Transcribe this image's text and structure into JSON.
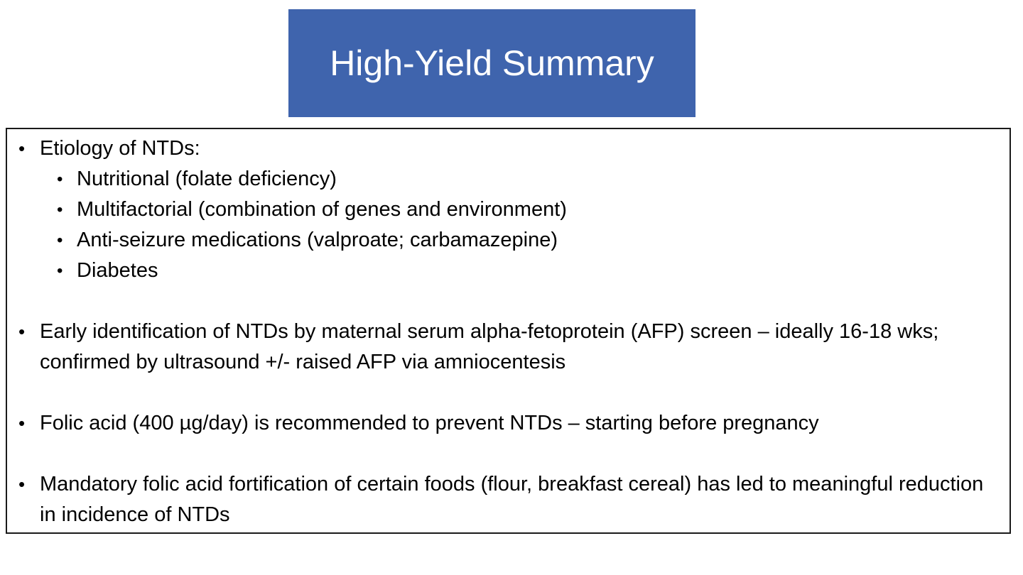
{
  "title": "High-Yield Summary",
  "colors": {
    "title_bg": "#3F64AD",
    "title_text": "#FFFFFF",
    "box_border": "#1A1A1A",
    "body_text": "#000000"
  },
  "content": {
    "bullets": [
      {
        "level": 1,
        "text": "Etiology of NTDs:",
        "spacer_after": false
      },
      {
        "level": 2,
        "text": "Nutritional (folate deficiency)",
        "spacer_after": false
      },
      {
        "level": 2,
        "text": "Multifactorial (combination of genes and environment)",
        "spacer_after": false
      },
      {
        "level": 2,
        "text": "Anti-seizure medications (valproate; carbamazepine)",
        "spacer_after": false
      },
      {
        "level": 2,
        "text": "Diabetes",
        "spacer_after": true
      },
      {
        "level": 1,
        "text": "Early identification of NTDs by maternal serum alpha-fetoprotein (AFP) screen – ideally 16-18 wks; confirmed by ultrasound +/- raised AFP via amniocentesis",
        "spacer_after": true
      },
      {
        "level": 1,
        "text": "Folic acid (400 µg/day) is recommended to prevent NTDs – starting before pregnancy",
        "spacer_after": true
      },
      {
        "level": 1,
        "text": "Mandatory folic acid fortification of certain foods (flour, breakfast cereal) has led to meaningful reduction in incidence of NTDs",
        "spacer_after": false
      }
    ]
  }
}
